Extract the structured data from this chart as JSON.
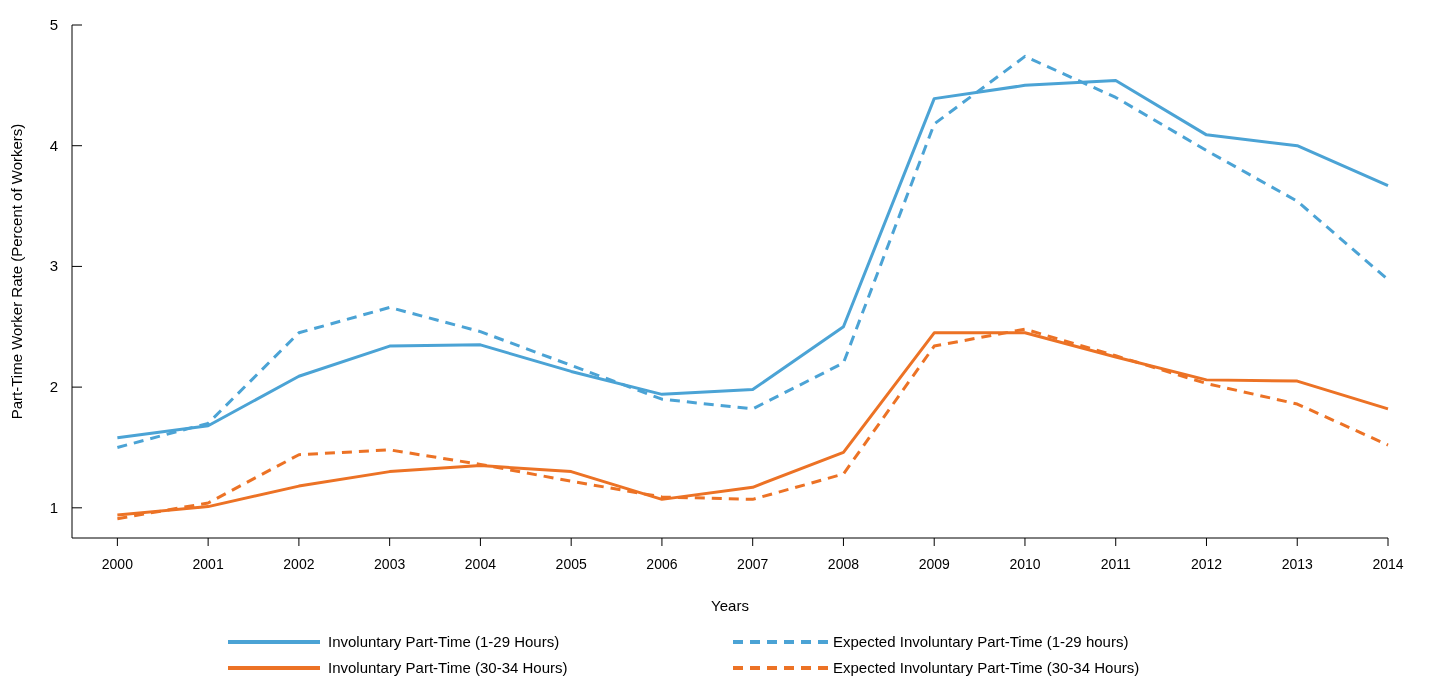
{
  "chart_data": {
    "type": "line",
    "xlabel": "Years",
    "ylabel": "Part-Time Worker Rate (Percent of Workers)",
    "x": [
      2000,
      2001,
      2002,
      2003,
      2004,
      2005,
      2006,
      2007,
      2008,
      2009,
      2010,
      2011,
      2012,
      2013,
      2014
    ],
    "xlim": [
      1999.5,
      2014
    ],
    "xticks": [
      2000,
      2001,
      2002,
      2003,
      2004,
      2005,
      2006,
      2007,
      2008,
      2009,
      2010,
      2011,
      2012,
      2013,
      2014
    ],
    "ylim": [
      0.75,
      5
    ],
    "yticks": [
      1,
      2,
      3,
      4,
      5
    ],
    "grid": false,
    "legend": "bottom",
    "marker": "none",
    "series": [
      {
        "name": "Involuntary Part-Time (1-29 Hours)",
        "color": "#4ba3d5",
        "line_style": "solid",
        "values": [
          1.58,
          1.68,
          2.09,
          2.34,
          2.35,
          2.13,
          1.94,
          1.98,
          2.5,
          4.39,
          4.5,
          4.54,
          4.09,
          4.0,
          3.67
        ]
      },
      {
        "name": "Involuntary Part-Time (30-34 Hours)",
        "color": "#ec7225",
        "line_style": "solid",
        "values": [
          0.94,
          1.01,
          1.18,
          1.3,
          1.35,
          1.3,
          1.07,
          1.17,
          1.46,
          2.45,
          2.45,
          2.25,
          2.06,
          2.05,
          1.82
        ]
      },
      {
        "name": "Expected Involuntary Part-Time (1-29 hours)",
        "color": "#4ba3d5",
        "line_style": "dashed",
        "values": [
          1.5,
          1.7,
          2.45,
          2.66,
          2.46,
          2.18,
          1.9,
          1.82,
          2.2,
          4.18,
          4.74,
          4.4,
          3.96,
          3.54,
          2.89
        ]
      },
      {
        "name": "Expected Involuntary Part-Time (30-34 Hours)",
        "color": "#ec7225",
        "line_style": "dashed",
        "values": [
          0.91,
          1.04,
          1.44,
          1.48,
          1.36,
          1.22,
          1.09,
          1.07,
          1.28,
          2.34,
          2.48,
          2.26,
          2.03,
          1.86,
          1.52
        ]
      }
    ]
  }
}
